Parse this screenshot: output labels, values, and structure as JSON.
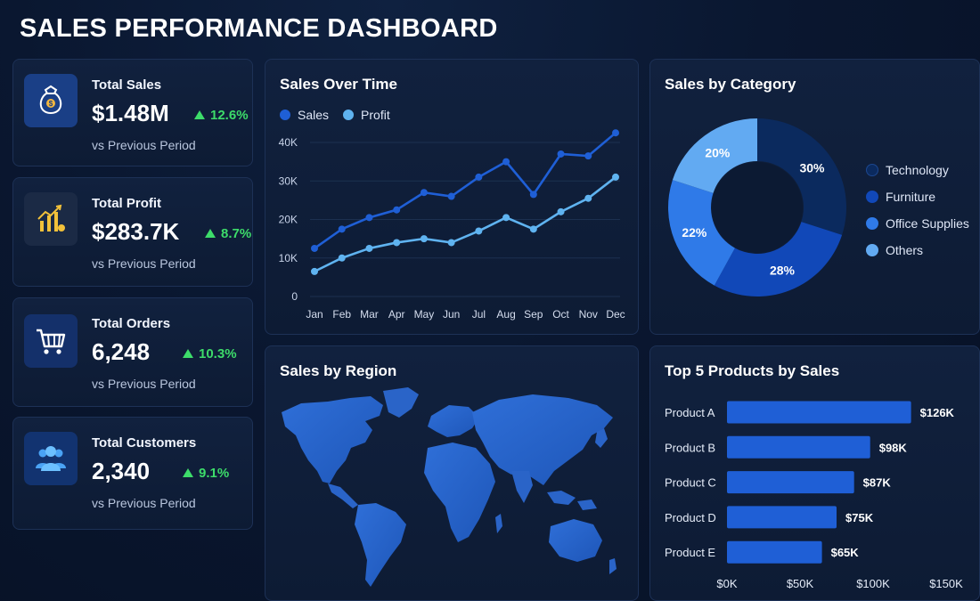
{
  "header": {
    "title": "SALES PERFORMANCE DASHBOARD"
  },
  "kpis": [
    {
      "label": "Total Sales",
      "value": "$1.48M",
      "change": "12.6%",
      "sub": "vs Previous Period",
      "icon": "money-bag-icon"
    },
    {
      "label": "Total Profit",
      "value": "$283.7K",
      "change": "8.7%",
      "sub": "vs Previous Period",
      "icon": "growth-chart-icon"
    },
    {
      "label": "Total Orders",
      "value": "6,248",
      "change": "10.3%",
      "sub": "vs Previous Period",
      "icon": "shopping-cart-icon"
    },
    {
      "label": "Total Customers",
      "value": "2,340",
      "change": "9.1%",
      "sub": "vs Previous Period",
      "icon": "users-icon"
    }
  ],
  "colors": {
    "accent": "#1f5fd6",
    "sales_line": "#1f5fd6",
    "profit_line": "#5fb3f0",
    "positive": "#3ddc6a",
    "technology": "#0b2a5e",
    "furniture": "#1148b8",
    "office_supplies": "#2f7ae8",
    "others": "#62aaf2",
    "bar": "#1f5fd6"
  },
  "panels": {
    "line": "Sales Over Time",
    "donut": "Sales by Category",
    "map": "Sales by Region",
    "bars": "Top 5 Products by Sales"
  },
  "chart_data": [
    {
      "type": "line",
      "title": "Sales Over Time",
      "categories": [
        "Jan",
        "Feb",
        "Mar",
        "Apr",
        "May",
        "Jun",
        "Jul",
        "Aug",
        "Sep",
        "Oct",
        "Nov",
        "Dec"
      ],
      "series": [
        {
          "name": "Sales",
          "values": [
            12500,
            17500,
            20500,
            22500,
            27000,
            26000,
            31000,
            35000,
            26500,
            37000,
            36500,
            42500
          ]
        },
        {
          "name": "Profit",
          "values": [
            6500,
            10000,
            12500,
            14000,
            15000,
            14000,
            17000,
            20500,
            17500,
            22000,
            25500,
            31000
          ]
        }
      ],
      "yticks": [
        "0",
        "10K",
        "20K",
        "30K",
        "40K"
      ],
      "ylim": [
        0,
        40000
      ],
      "grid": true,
      "legend": "top-left"
    },
    {
      "type": "pie",
      "title": "Sales by Category",
      "donut": true,
      "labels": [
        "Technology",
        "Furniture",
        "Office Supplies",
        "Others"
      ],
      "values": [
        30,
        28,
        22,
        20
      ],
      "value_labels": [
        "30%",
        "28%",
        "22%",
        "20%"
      ],
      "legend": "right"
    },
    {
      "type": "bar",
      "orientation": "horizontal",
      "title": "Top 5 Products by Sales",
      "categories": [
        "Product A",
        "Product B",
        "Product C",
        "Product D",
        "Product E"
      ],
      "values": [
        126,
        98,
        87,
        75,
        65
      ],
      "value_labels": [
        "$126K",
        "$98K",
        "$87K",
        "$75K",
        "$65K"
      ],
      "xticks": [
        "$0K",
        "$50K",
        "$100K",
        "$150K"
      ],
      "xlim": [
        0,
        150
      ]
    }
  ]
}
